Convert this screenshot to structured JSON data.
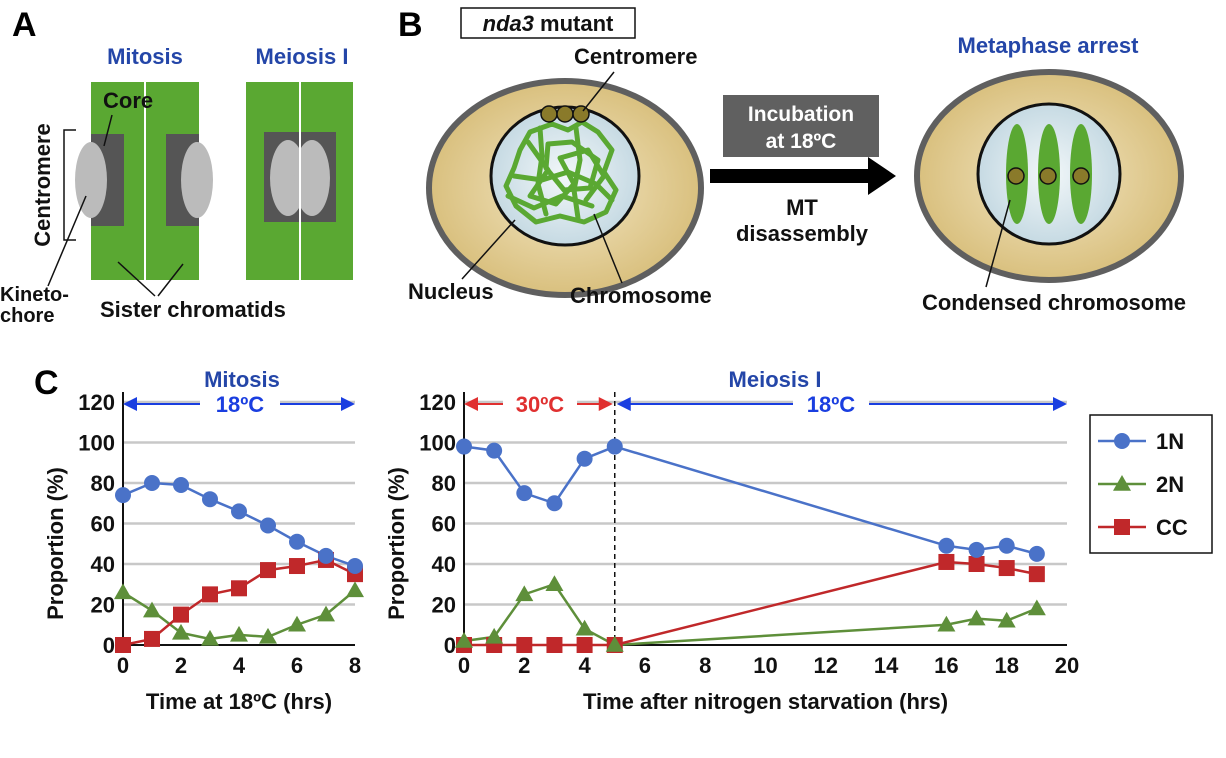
{
  "panels": [
    "A",
    "B",
    "C"
  ],
  "panelA": {
    "mitosis_title": "Mitosis",
    "meiosis_title": "Meiosis I",
    "core_label": "Core",
    "centromere_label": "Centromere",
    "kinetochore_line1": "Kineto-",
    "kinetochore_line2": "chore",
    "sister_label": "Sister chromatids"
  },
  "panelB": {
    "mutant_italic": "nda3",
    "mutant_rest": "mutant",
    "centromere_label": "Centromere",
    "incubation_line1": "Incubation",
    "incubation_line2": "at 18ºC",
    "mt_line1": "MT",
    "mt_line2": "disassembly",
    "nucleus_label": "Nucleus",
    "chromosome_label": "Chromosome",
    "arrest_title": "Metaphase arrest",
    "condensed_label": "Condensed chromosome"
  },
  "colors": {
    "chromatid_green": "#5aa832",
    "core_gray": "#555555",
    "kinetochore_gray": "#bbbbbb",
    "cell_tan": "#e6d3a0",
    "nucleus_blue": "#dbe8ee",
    "centromere_olive": "#8a7a2a",
    "series_1N": "#4a72c8",
    "series_2N": "#5e8f3a",
    "series_CC": "#c0282a",
    "temp_blue": "#1a3ee0",
    "temp_red": "#e03030"
  },
  "legend": {
    "items": [
      "1N",
      "2N",
      "CC"
    ]
  },
  "chart_data": [
    {
      "type": "line",
      "title": "Mitosis",
      "xlabel": "Time at 18ºC (hrs)",
      "ylabel": "Proportion (%)",
      "xlim": [
        0,
        8
      ],
      "ylim": [
        0,
        120
      ],
      "xticks": [
        0,
        2,
        4,
        6,
        8
      ],
      "yticks": [
        0,
        20,
        40,
        60,
        80,
        100,
        120
      ],
      "grid": true,
      "annotation": "18ºC",
      "x": [
        0,
        1,
        2,
        3,
        4,
        5,
        6,
        7,
        8
      ],
      "series": [
        {
          "name": "1N",
          "values": [
            74,
            80,
            79,
            72,
            66,
            59,
            51,
            44,
            39
          ]
        },
        {
          "name": "2N",
          "values": [
            26,
            17,
            6,
            3,
            5,
            4,
            10,
            15,
            27
          ]
        },
        {
          "name": "CC",
          "values": [
            0,
            3,
            15,
            25,
            28,
            37,
            39,
            42,
            35
          ]
        }
      ]
    },
    {
      "type": "line",
      "title": "Meiosis I",
      "xlabel": "Time after nitrogen starvation (hrs)",
      "ylabel": "Proportion (%)",
      "xlim": [
        0,
        20
      ],
      "ylim": [
        0,
        120
      ],
      "xticks": [
        0,
        2,
        4,
        6,
        8,
        10,
        12,
        14,
        16,
        18,
        20
      ],
      "yticks": [
        0,
        20,
        40,
        60,
        80,
        100,
        120
      ],
      "grid": true,
      "annotation_left": "30ºC",
      "annotation_right": "18ºC",
      "divider_x": 5,
      "legend": "right",
      "x": [
        0,
        1,
        2,
        3,
        4,
        5,
        16,
        17,
        18,
        19
      ],
      "series": [
        {
          "name": "1N",
          "values": [
            98,
            96,
            75,
            70,
            92,
            98,
            49,
            47,
            49,
            45
          ]
        },
        {
          "name": "2N",
          "values": [
            2,
            4,
            25,
            30,
            8,
            0,
            10,
            13,
            12,
            18
          ]
        },
        {
          "name": "CC",
          "values": [
            0,
            0,
            0,
            0,
            0,
            0,
            41,
            40,
            38,
            35
          ]
        }
      ]
    }
  ]
}
